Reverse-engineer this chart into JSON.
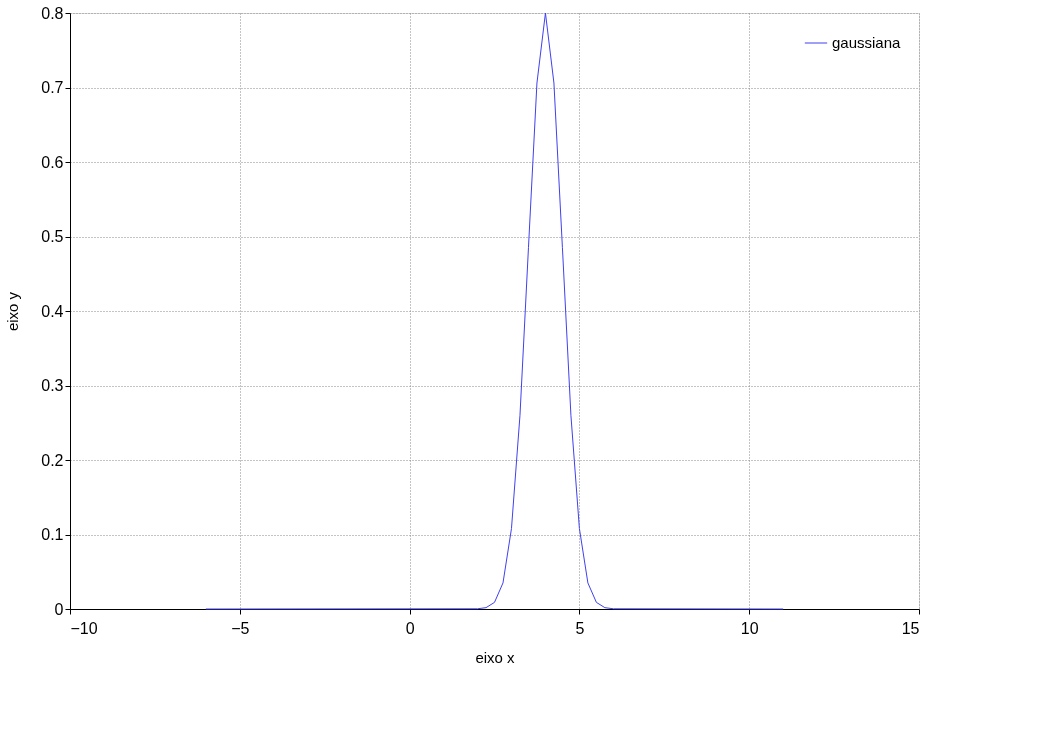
{
  "chart_data": {
    "type": "line",
    "xlabel": "eixo x",
    "ylabel": "eixo y",
    "series": [
      {
        "name": "gaussiana",
        "color": "#4040f0",
        "x": [
          -6,
          2,
          2.25,
          2.5,
          2.75,
          3,
          3.25,
          3.5,
          3.75,
          4,
          4.25,
          4.5,
          4.75,
          5,
          5.25,
          5.5,
          5.75,
          6,
          11
        ],
        "values": [
          0,
          0.0003,
          0.0018,
          0.0089,
          0.035,
          0.108,
          0.26,
          0.485,
          0.706,
          0.8,
          0.706,
          0.485,
          0.26,
          0.108,
          0.035,
          0.0089,
          0.0018,
          0.0003,
          0
        ]
      }
    ],
    "xlim": [
      -10,
      15
    ],
    "xticks": [
      -10,
      -5,
      0,
      5,
      10,
      15
    ],
    "ylim": [
      0,
      0.8
    ],
    "yticks": [
      0,
      0.1,
      0.2,
      0.3,
      0.4,
      0.5,
      0.6,
      0.7,
      0.8
    ],
    "grid": true,
    "legend": "top right",
    "marker": "none",
    "line_style": "solid"
  }
}
